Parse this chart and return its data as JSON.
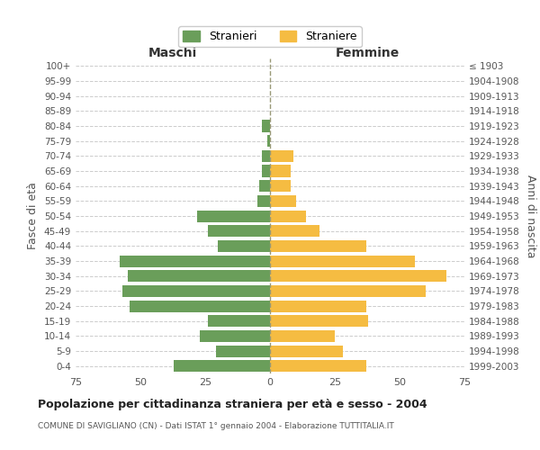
{
  "age_groups": [
    "100+",
    "95-99",
    "90-94",
    "85-89",
    "80-84",
    "75-79",
    "70-74",
    "65-69",
    "60-64",
    "55-59",
    "50-54",
    "45-49",
    "40-44",
    "35-39",
    "30-34",
    "25-29",
    "20-24",
    "15-19",
    "10-14",
    "5-9",
    "0-4"
  ],
  "birth_years": [
    "≤ 1903",
    "1904-1908",
    "1909-1913",
    "1914-1918",
    "1919-1923",
    "1924-1928",
    "1929-1933",
    "1934-1938",
    "1939-1943",
    "1944-1948",
    "1949-1953",
    "1954-1958",
    "1959-1963",
    "1964-1968",
    "1969-1973",
    "1974-1978",
    "1979-1983",
    "1984-1988",
    "1989-1993",
    "1994-1998",
    "1999-2003"
  ],
  "males": [
    0,
    0,
    0,
    0,
    3,
    1,
    3,
    3,
    4,
    5,
    28,
    24,
    20,
    58,
    55,
    57,
    54,
    24,
    27,
    21,
    37
  ],
  "females": [
    0,
    0,
    0,
    0,
    0,
    0,
    9,
    8,
    8,
    10,
    14,
    19,
    37,
    56,
    68,
    60,
    37,
    38,
    25,
    28,
    37
  ],
  "male_color": "#6a9e5a",
  "female_color": "#f5bc42",
  "grid_color": "#cccccc",
  "dashed_color": "#999977",
  "title": "Popolazione per cittadinanza straniera per età e sesso - 2004",
  "subtitle": "COMUNE DI SAVIGLIANO (CN) - Dati ISTAT 1° gennaio 2004 - Elaborazione TUTTITALIA.IT",
  "xlabel_left": "Maschi",
  "xlabel_right": "Femmine",
  "ylabel_left": "Fasce di età",
  "ylabel_right": "Anni di nascita",
  "legend_male": "Stranieri",
  "legend_female": "Straniere",
  "xlim": 75
}
